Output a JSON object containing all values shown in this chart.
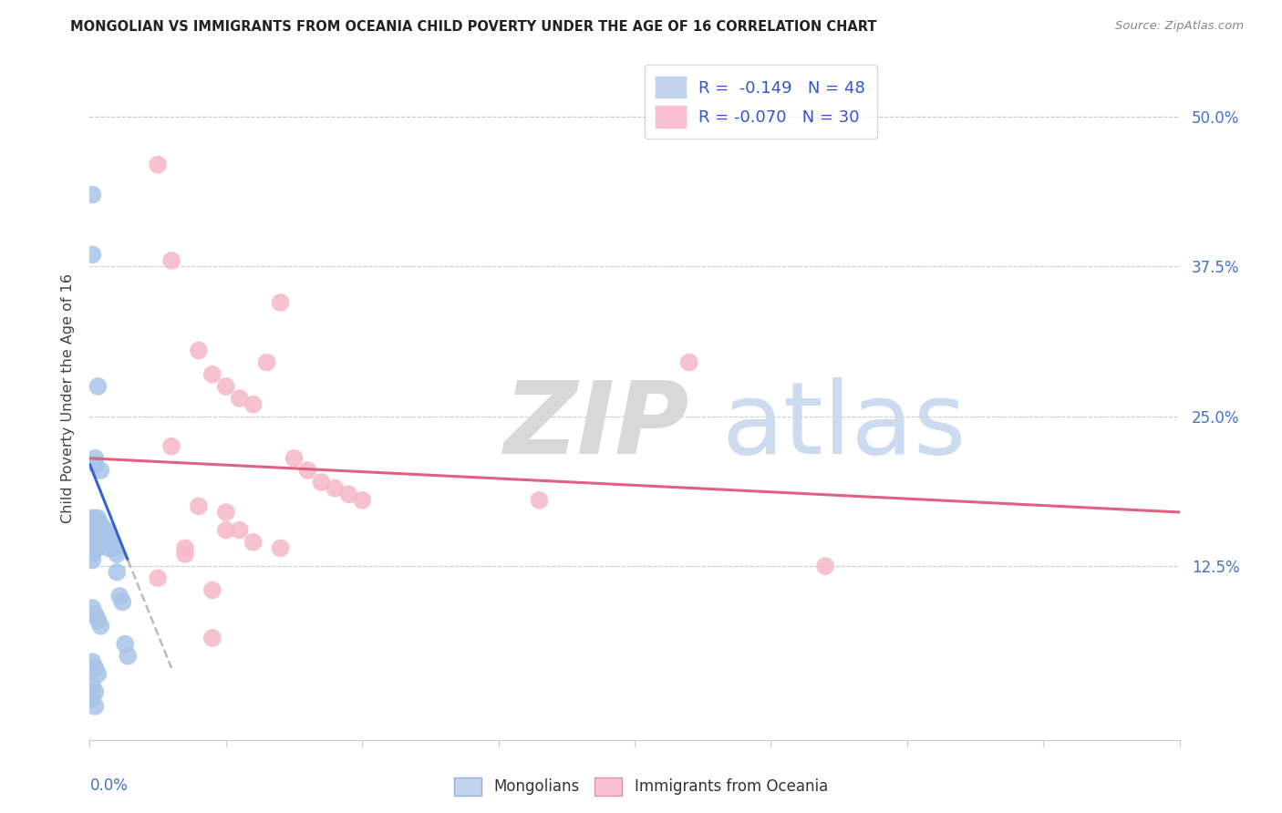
{
  "title": "MONGOLIAN VS IMMIGRANTS FROM OCEANIA CHILD POVERTY UNDER THE AGE OF 16 CORRELATION CHART",
  "source": "Source: ZipAtlas.com",
  "ylabel": "Child Poverty Under the Age of 16",
  "xlim": [
    0.0,
    0.4
  ],
  "ylim": [
    -0.02,
    0.55
  ],
  "legend_blue_r": "-0.149",
  "legend_blue_n": "48",
  "legend_pink_r": "-0.070",
  "legend_pink_n": "30",
  "blue_scatter_color": "#a8c4e8",
  "pink_scatter_color": "#f5b8c8",
  "blue_line_color": "#3366cc",
  "pink_line_color": "#e06080",
  "dashed_line_color": "#bbbbbb",
  "mongolians_x": [
    0.001,
    0.001,
    0.001,
    0.001,
    0.001,
    0.001,
    0.001,
    0.001,
    0.002,
    0.002,
    0.002,
    0.002,
    0.002,
    0.002,
    0.002,
    0.003,
    0.003,
    0.003,
    0.003,
    0.003,
    0.004,
    0.004,
    0.004,
    0.005,
    0.005,
    0.006,
    0.006,
    0.007,
    0.007,
    0.008,
    0.009,
    0.01,
    0.01,
    0.011,
    0.012,
    0.013,
    0.014,
    0.001,
    0.002,
    0.003,
    0.004,
    0.001,
    0.002,
    0.003,
    0.001,
    0.002,
    0.001,
    0.002
  ],
  "mongolians_y": [
    0.435,
    0.385,
    0.165,
    0.155,
    0.145,
    0.14,
    0.135,
    0.13,
    0.215,
    0.21,
    0.165,
    0.16,
    0.155,
    0.15,
    0.145,
    0.275,
    0.165,
    0.16,
    0.145,
    0.14,
    0.205,
    0.16,
    0.15,
    0.155,
    0.145,
    0.155,
    0.145,
    0.15,
    0.14,
    0.145,
    0.14,
    0.135,
    0.12,
    0.1,
    0.095,
    0.06,
    0.05,
    0.09,
    0.085,
    0.08,
    0.075,
    0.045,
    0.04,
    0.035,
    0.025,
    0.02,
    0.015,
    0.008
  ],
  "oceania_x": [
    0.025,
    0.03,
    0.04,
    0.045,
    0.05,
    0.055,
    0.06,
    0.065,
    0.07,
    0.075,
    0.08,
    0.085,
    0.09,
    0.095,
    0.1,
    0.03,
    0.04,
    0.05,
    0.055,
    0.06,
    0.165,
    0.22,
    0.27,
    0.035,
    0.045,
    0.05,
    0.07,
    0.035,
    0.045,
    0.025
  ],
  "oceania_y": [
    0.46,
    0.38,
    0.305,
    0.285,
    0.275,
    0.265,
    0.26,
    0.295,
    0.345,
    0.215,
    0.205,
    0.195,
    0.19,
    0.185,
    0.18,
    0.225,
    0.175,
    0.17,
    0.155,
    0.145,
    0.18,
    0.295,
    0.125,
    0.14,
    0.065,
    0.155,
    0.14,
    0.135,
    0.105,
    0.115
  ],
  "blue_line_x": [
    0.0,
    0.014
  ],
  "blue_line_y": [
    0.21,
    0.13
  ],
  "dash_line_x": [
    0.014,
    0.03
  ],
  "dash_line_y": [
    0.13,
    0.04
  ],
  "pink_line_x": [
    0.0,
    0.4
  ],
  "pink_line_y": [
    0.215,
    0.17
  ],
  "background_color": "#ffffff",
  "grid_color": "#cccccc",
  "right_tick_color": "#4472c4",
  "ytick_vals": [
    0.125,
    0.25,
    0.375,
    0.5
  ],
  "ytick_labels": [
    "12.5%",
    "25.0%",
    "37.5%",
    "50.0%"
  ]
}
